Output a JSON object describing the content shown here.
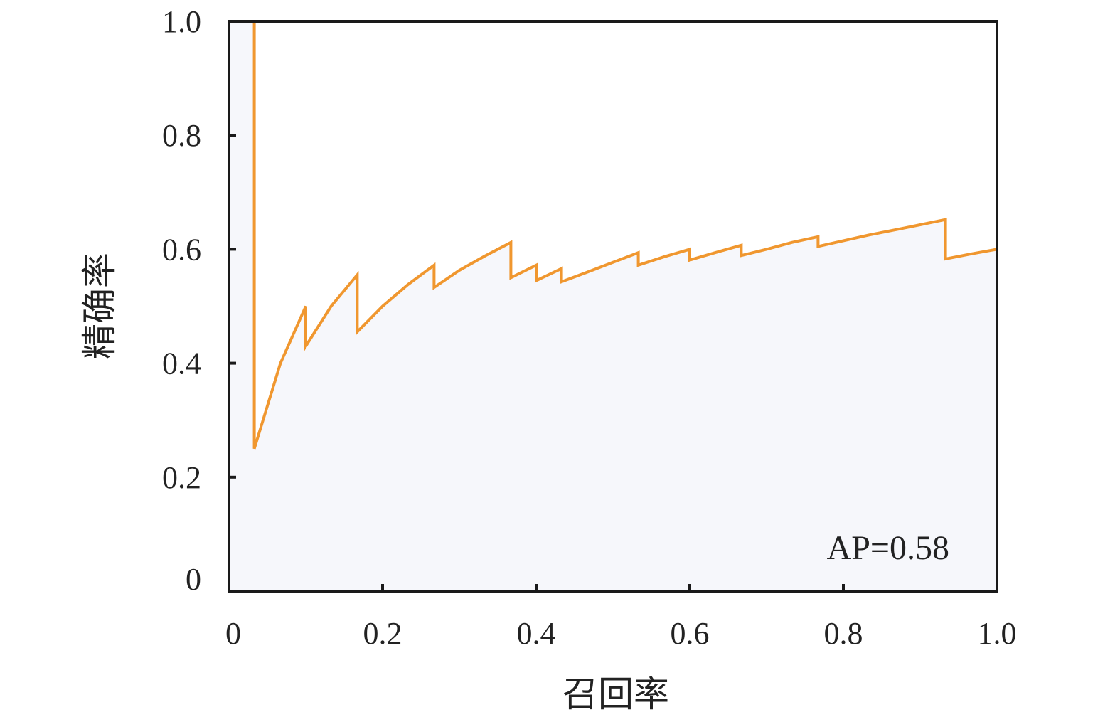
{
  "chart_data": {
    "type": "area",
    "xlabel": "召回率",
    "ylabel": "精确率",
    "xlim": [
      0,
      1.0
    ],
    "ylim": [
      0,
      1.0
    ],
    "x_ticks": [
      {
        "value": 0,
        "label": "0"
      },
      {
        "value": 0.2,
        "label": "0.2"
      },
      {
        "value": 0.4,
        "label": "0.4"
      },
      {
        "value": 0.6,
        "label": "0.6"
      },
      {
        "value": 0.8,
        "label": "0.8"
      },
      {
        "value": 1.0,
        "label": "1.0"
      }
    ],
    "y_ticks": [
      {
        "value": 0,
        "label": "0"
      },
      {
        "value": 0.2,
        "label": "0.2"
      },
      {
        "value": 0.4,
        "label": "0.4"
      },
      {
        "value": 0.6,
        "label": "0.6"
      },
      {
        "value": 0.8,
        "label": "0.8"
      },
      {
        "value": 1.0,
        "label": "1.0"
      }
    ],
    "grid": false,
    "annotation": "AP=0.58",
    "colors": {
      "line": "#f0972f",
      "fill": "#f6f7fb",
      "axis": "#1a1a1a",
      "annotation": "#2e5aa6"
    },
    "series": [
      {
        "x": [
          0.033,
          0.033,
          0.067,
          0.1,
          0.1,
          0.133,
          0.167,
          0.167,
          0.2,
          0.233,
          0.267,
          0.267,
          0.3,
          0.333,
          0.367,
          0.367,
          0.4,
          0.4,
          0.433,
          0.433,
          0.467,
          0.5,
          0.533,
          0.533,
          0.567,
          0.6,
          0.6,
          0.633,
          0.667,
          0.667,
          0.7,
          0.733,
          0.767,
          0.767,
          0.8,
          0.833,
          0.867,
          0.9,
          0.933,
          0.933,
          0.967,
          1.0
        ],
        "y": [
          1.0,
          0.25,
          0.4,
          0.5,
          0.43,
          0.5,
          0.555,
          0.455,
          0.5,
          0.538,
          0.572,
          0.533,
          0.563,
          0.588,
          0.612,
          0.55,
          0.572,
          0.545,
          0.566,
          0.543,
          0.56,
          0.577,
          0.594,
          0.572,
          0.587,
          0.6,
          0.581,
          0.594,
          0.607,
          0.589,
          0.6,
          0.612,
          0.622,
          0.605,
          0.615,
          0.625,
          0.634,
          0.643,
          0.652,
          0.583,
          0.592,
          0.6
        ]
      }
    ]
  }
}
